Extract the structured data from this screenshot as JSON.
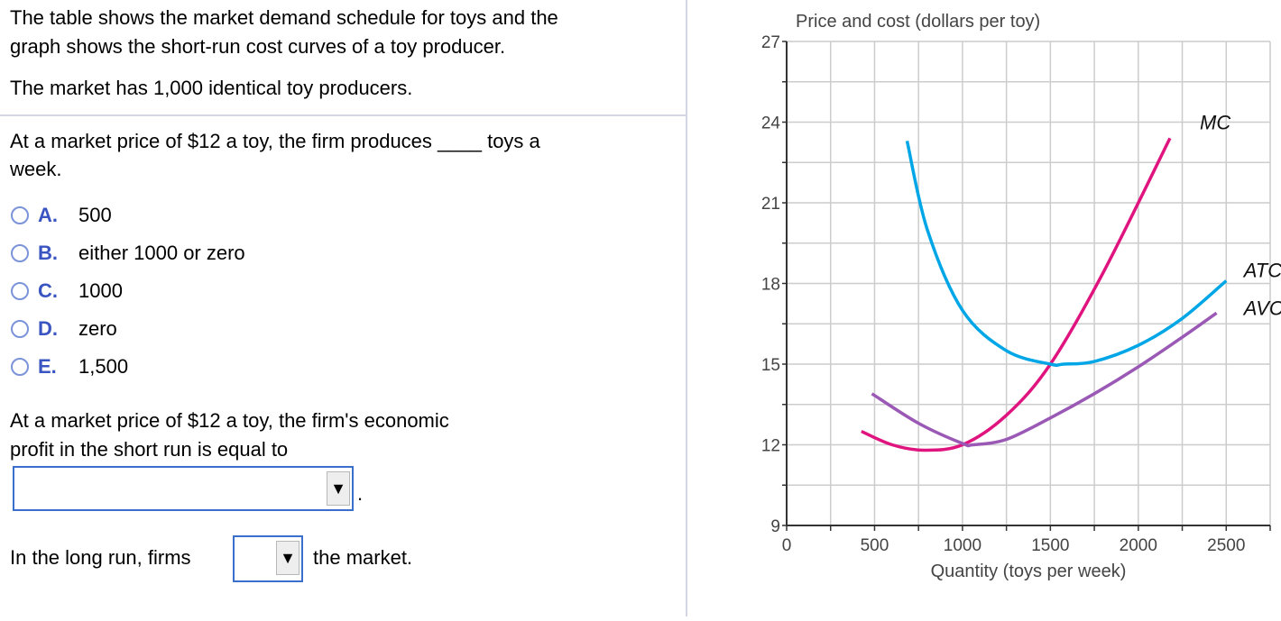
{
  "intro": {
    "line1": "The table shows the market demand schedule for toys and the",
    "line2": "graph shows the short-run cost curves of a toy producer.",
    "line3": "The market has 1,000 identical toy producers."
  },
  "question1": {
    "text_a": "At a market price of $12 a toy, the firm produces ____ toys a",
    "text_b": "week.",
    "options": [
      {
        "letter": "A.",
        "label": "500"
      },
      {
        "letter": "B.",
        "label": "either 1000 or zero"
      },
      {
        "letter": "C.",
        "label": "1000"
      },
      {
        "letter": "D.",
        "label": "zero"
      },
      {
        "letter": "E.",
        "label": "1,500"
      }
    ]
  },
  "question2": {
    "text_a": "At a market price of $12 a toy, the firm's economic",
    "text_b": "profit in the short run is equal to",
    "dropdown_value": "",
    "dropdown_arrow": "▼",
    "suffix": "."
  },
  "question3": {
    "prefix": "In the long run, firms",
    "dropdown_value": "",
    "dropdown_arrow": "▼",
    "suffix": "the market."
  },
  "chart_data": {
    "type": "line",
    "title": "",
    "ylabel": "Price and cost (dollars per toy)",
    "xlabel": "Quantity (toys per week)",
    "xlim": [
      0,
      2750
    ],
    "ylim": [
      9,
      27
    ],
    "x_ticks": [
      0,
      500,
      1000,
      1500,
      2000,
      2500
    ],
    "x_tick_labels": [
      "0",
      "500",
      "1000",
      "1500",
      "2000",
      "2500"
    ],
    "y_ticks": [
      9,
      12,
      15,
      18,
      21,
      24,
      27
    ],
    "y_tick_labels": [
      "9",
      "12",
      "15",
      "18",
      "21",
      "24",
      "27"
    ],
    "grid": true,
    "grid_x_step": 250,
    "grid_y_step": 1.5,
    "series": [
      {
        "name": "MC",
        "color": "#e0147f",
        "x": [
          425,
          600,
          780,
          1000,
          1250,
          1500,
          1800,
          2180
        ],
        "y": [
          12.5,
          12.0,
          11.8,
          12.0,
          13.1,
          15.0,
          18.4,
          23.4
        ]
      },
      {
        "name": "ATC",
        "color": "#00a6e6",
        "x": [
          685,
          800,
          1000,
          1250,
          1500,
          1575,
          1750,
          2000,
          2250,
          2500
        ],
        "y": [
          23.3,
          20.0,
          17.0,
          15.5,
          15.0,
          15.0,
          15.1,
          15.7,
          16.7,
          18.1
        ]
      },
      {
        "name": "AVC",
        "color": "#9b59b6",
        "x": [
          485,
          750,
          1000,
          1060,
          1250,
          1500,
          1750,
          2000,
          2250,
          2445
        ],
        "y": [
          13.9,
          12.8,
          12.05,
          12.0,
          12.2,
          13.0,
          13.9,
          14.9,
          16.0,
          16.9
        ]
      }
    ],
    "annotations": [
      {
        "text": "MC",
        "x": 2350,
        "y": 24
      },
      {
        "text": "ATC",
        "x": 2600,
        "y": 18.5
      },
      {
        "text": "AVC",
        "x": 2600,
        "y": 17.1
      }
    ]
  }
}
